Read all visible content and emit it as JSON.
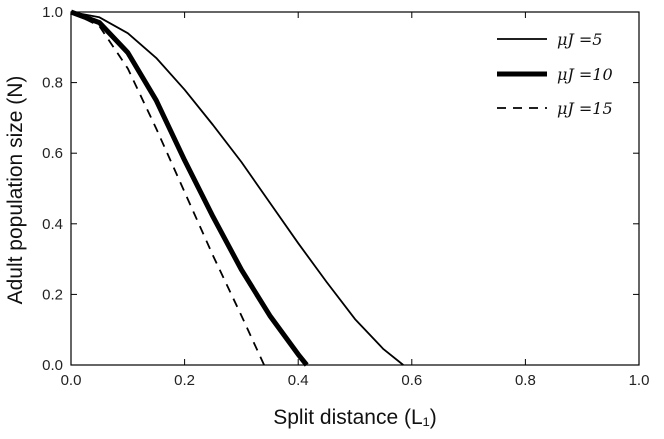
{
  "chart_data": {
    "type": "line",
    "xlabel": "Split distance (L₁)",
    "ylabel": "Adult population size (N)",
    "xlim": [
      0,
      1
    ],
    "ylim": [
      0,
      1
    ],
    "xticks": [
      "0.0",
      "0.2",
      "0.4",
      "0.6",
      "0.8",
      "1.0"
    ],
    "yticks": [
      "0.0",
      "0.2",
      "0.4",
      "0.6",
      "0.8",
      "1.0"
    ],
    "grid": false,
    "legend_position": "top-right",
    "series": [
      {
        "name": "μ_J = 5",
        "legend": "μJ =5",
        "style": "solid-thin",
        "color": "#000000",
        "x": [
          0.0,
          0.05,
          0.1,
          0.15,
          0.2,
          0.25,
          0.3,
          0.35,
          0.4,
          0.45,
          0.5,
          0.55,
          0.585
        ],
        "y": [
          1.0,
          0.985,
          0.94,
          0.87,
          0.78,
          0.68,
          0.575,
          0.46,
          0.345,
          0.235,
          0.13,
          0.045,
          0.0
        ]
      },
      {
        "name": "μ_J = 10",
        "legend": "μJ =10",
        "style": "solid-thick",
        "color": "#000000",
        "x": [
          0.0,
          0.05,
          0.1,
          0.15,
          0.2,
          0.25,
          0.3,
          0.35,
          0.4,
          0.415
        ],
        "y": [
          1.0,
          0.97,
          0.885,
          0.75,
          0.58,
          0.42,
          0.27,
          0.14,
          0.03,
          0.0
        ]
      },
      {
        "name": "μ_J = 15",
        "legend": "μJ =15",
        "style": "dashed",
        "color": "#000000",
        "x": [
          0.0,
          0.05,
          0.1,
          0.15,
          0.2,
          0.25,
          0.3,
          0.34
        ],
        "y": [
          1.0,
          0.96,
          0.84,
          0.67,
          0.49,
          0.31,
          0.14,
          0.0
        ]
      }
    ]
  }
}
